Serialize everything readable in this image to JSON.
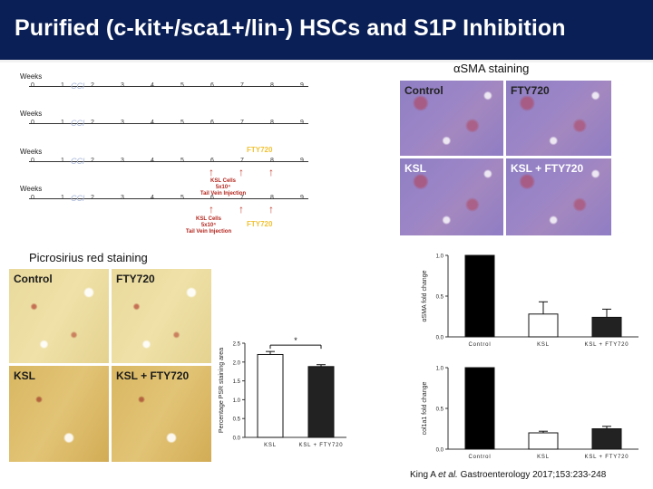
{
  "slide": {
    "title": "Purified (c-kit+/sca1+/lin-) HSCs and S1P Inhibition",
    "sma_heading": "αSMA staining",
    "psr_heading": "Picrosirius red staining",
    "citation_prefix": "King A ",
    "citation_etal": "et al.",
    "citation_journal": " Gastroenterology ",
    "citation_rest": "2017;153:233-248"
  },
  "timeline": {
    "weeks_label": "Weeks",
    "ticks": [
      "0",
      "1",
      "2",
      "3",
      "4",
      "5",
      "6",
      "7",
      "8",
      "9"
    ],
    "ccl_label": "CCl",
    "fty_label": "FTY720",
    "ksl_note_a": "KSL Cells\n5x10⁴\nTail Vein Injection",
    "ksl_note_b": "KSL Cells\n5x10⁴\nTail Vein Injection"
  },
  "sma_panels": [
    {
      "label": "Control",
      "key": "control"
    },
    {
      "label": "FTY720",
      "key": "fty720"
    },
    {
      "label": "KSL",
      "key": "ksl"
    },
    {
      "label": "KSL + FTY720",
      "key": "ksl_fty"
    }
  ],
  "psr_panels": [
    {
      "label": "Control",
      "key": "control"
    },
    {
      "label": "FTY720",
      "key": "fty720"
    },
    {
      "label": "KSL",
      "key": "ksl"
    },
    {
      "label": "KSL + FTY720",
      "key": "ksl_fty"
    }
  ],
  "chart_data": [
    {
      "type": "bar",
      "name": "psr",
      "categories": [
        "KSL",
        "KSL + FTY720"
      ],
      "values": [
        2.2,
        1.88
      ],
      "errors": [
        0.08,
        0.05
      ],
      "colors": [
        "#ffffff",
        "#222222"
      ],
      "ylabel": "Percentage PSR staining area",
      "ylim": [
        0,
        2.5
      ],
      "yticks": [
        "0.0",
        "0.5",
        "1.0",
        "1.5",
        "2.0",
        "2.5"
      ],
      "significance": "*"
    },
    {
      "type": "bar",
      "name": "asma",
      "categories": [
        "Control",
        "KSL",
        "KSL + FTY720"
      ],
      "values": [
        1.0,
        0.28,
        0.24
      ],
      "errors": [
        0,
        0.15,
        0.1
      ],
      "colors": [
        "#000000",
        "#ffffff",
        "#222222"
      ],
      "ylabel": "αSMA fold change",
      "ylim": [
        0,
        1.0
      ],
      "yticks": [
        "0.0",
        "0.5",
        "1.0"
      ]
    },
    {
      "type": "bar",
      "name": "col1a1",
      "categories": [
        "Control",
        "KSL",
        "KSL + FTY720"
      ],
      "values": [
        1.0,
        0.2,
        0.25
      ],
      "errors": [
        0,
        0.02,
        0.03
      ],
      "colors": [
        "#000000",
        "#ffffff",
        "#222222"
      ],
      "ylabel": "col1a1 fold change",
      "ylim": [
        0,
        1.0
      ],
      "yticks": [
        "0.0",
        "0.5",
        "1.0"
      ]
    }
  ]
}
